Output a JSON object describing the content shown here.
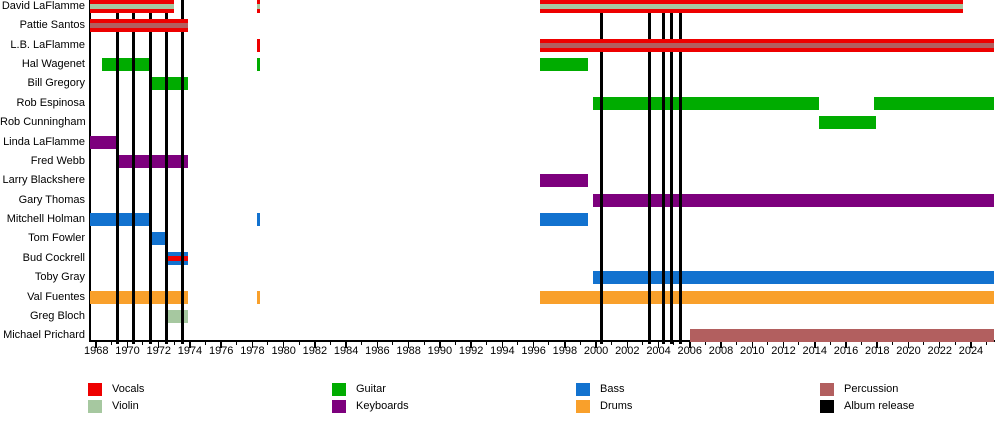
{
  "chart_data": {
    "type": "timeline",
    "description": "Band membership timeline: horizontal colored bars per member by instrument role, with black vertical album-release lines",
    "x_axis": {
      "unit": "year",
      "range_start": 1967.6,
      "range_end": 2025.8,
      "label_interval": 2,
      "minor_tick_interval": 1,
      "tick_labels": [
        "1968",
        "1970",
        "1972",
        "1974",
        "1976",
        "1978",
        "1980",
        "1982",
        "1984",
        "1986",
        "1988",
        "1990",
        "1992",
        "1994",
        "1996",
        "1998",
        "2000",
        "2002",
        "2004",
        "2006",
        "2008",
        "2010",
        "2012",
        "2014",
        "2016",
        "2018",
        "2020",
        "2022",
        "2024"
      ]
    },
    "colors": {
      "vocals": "#ee0000",
      "violin": "#a6c8a0",
      "guitar": "#00ac00",
      "keyboards": "#7d007d",
      "bass": "#1272cf",
      "drums": "#f9a02b",
      "percussion": "#b25f5f",
      "album_release": "#000000"
    },
    "members": [
      {
        "name": "David LaFlamme",
        "segments": [
          {
            "from": 1967.6,
            "till": 1973.0,
            "role": "vocals",
            "stripe": "violin"
          },
          {
            "from": 1978.3,
            "till": 1978.5,
            "role": "vocals",
            "stripe": "violin"
          },
          {
            "from": 1996.4,
            "till": 2023.5,
            "role": "vocals",
            "stripe": "violin"
          }
        ]
      },
      {
        "name": "Pattie Santos",
        "segments": [
          {
            "from": 1967.6,
            "till": 1973.9,
            "role": "vocals",
            "stripe": "percussion"
          }
        ]
      },
      {
        "name": "L.B. LaFlamme",
        "segments": [
          {
            "from": 1978.3,
            "till": 1978.5,
            "role": "vocals"
          },
          {
            "from": 1996.4,
            "till": 2025.5,
            "role": "vocals",
            "stripe": "percussion"
          }
        ]
      },
      {
        "name": "Hal Wagenet",
        "segments": [
          {
            "from": 1968.4,
            "till": 1971.4,
            "role": "guitar"
          },
          {
            "from": 1978.3,
            "till": 1978.5,
            "role": "guitar"
          },
          {
            "from": 1996.4,
            "till": 1999.5,
            "role": "guitar"
          }
        ]
      },
      {
        "name": "Bill Gregory",
        "segments": [
          {
            "from": 1971.4,
            "till": 1973.9,
            "role": "guitar"
          }
        ]
      },
      {
        "name": "Rob Espinosa",
        "segments": [
          {
            "from": 1999.8,
            "till": 2014.3,
            "role": "guitar"
          },
          {
            "from": 2017.8,
            "till": 2025.5,
            "role": "guitar"
          }
        ]
      },
      {
        "name": "Rob Cunningham",
        "segments": [
          {
            "from": 2014.3,
            "till": 2017.9,
            "role": "guitar"
          }
        ]
      },
      {
        "name": "Linda LaFlamme",
        "segments": [
          {
            "from": 1967.6,
            "till": 1969.4,
            "role": "keyboards"
          }
        ]
      },
      {
        "name": "Fred Webb",
        "segments": [
          {
            "from": 1969.4,
            "till": 1973.9,
            "role": "keyboards"
          }
        ]
      },
      {
        "name": "Larry Blackshere",
        "segments": [
          {
            "from": 1996.4,
            "till": 1999.5,
            "role": "keyboards"
          }
        ]
      },
      {
        "name": "Gary Thomas",
        "segments": [
          {
            "from": 1999.8,
            "till": 2025.5,
            "role": "keyboards"
          }
        ]
      },
      {
        "name": "Mitchell Holman",
        "segments": [
          {
            "from": 1967.6,
            "till": 1971.4,
            "role": "bass"
          },
          {
            "from": 1978.3,
            "till": 1978.5,
            "role": "bass"
          },
          {
            "from": 1996.4,
            "till": 1999.5,
            "role": "bass"
          }
        ]
      },
      {
        "name": "Tom Fowler",
        "segments": [
          {
            "from": 1971.4,
            "till": 1972.5,
            "role": "bass"
          }
        ]
      },
      {
        "name": "Bud Cockrell",
        "segments": [
          {
            "from": 1972.5,
            "till": 1973.9,
            "role": "bass",
            "stripe": "vocals"
          }
        ]
      },
      {
        "name": "Toby Gray",
        "segments": [
          {
            "from": 1999.8,
            "till": 2025.5,
            "role": "bass"
          }
        ]
      },
      {
        "name": "Val Fuentes",
        "segments": [
          {
            "from": 1967.6,
            "till": 1973.9,
            "role": "drums"
          },
          {
            "from": 1978.3,
            "till": 1978.5,
            "role": "drums"
          },
          {
            "from": 1996.4,
            "till": 2025.5,
            "role": "drums"
          }
        ]
      },
      {
        "name": "Greg Bloch",
        "segments": [
          {
            "from": 1972.5,
            "till": 1973.9,
            "role": "violin"
          }
        ]
      },
      {
        "name": "Michael Prichard",
        "segments": [
          {
            "from": 2006.0,
            "till": 2025.5,
            "role": "percussion"
          }
        ]
      }
    ],
    "album_release_years": [
      1969.35,
      1970.4,
      1971.45,
      1972.5,
      1973.5,
      2000.35,
      2003.4,
      2004.3,
      2004.8,
      2005.4
    ]
  },
  "legend": {
    "items": [
      {
        "label": "Vocals",
        "role": "vocals"
      },
      {
        "label": "Violin",
        "role": "violin"
      },
      {
        "label": "Guitar",
        "role": "guitar"
      },
      {
        "label": "Keyboards",
        "role": "keyboards"
      },
      {
        "label": "Bass",
        "role": "bass"
      },
      {
        "label": "Drums",
        "role": "drums"
      },
      {
        "label": "Percussion",
        "role": "percussion"
      },
      {
        "label": "Album release",
        "role": "album_release"
      }
    ]
  }
}
